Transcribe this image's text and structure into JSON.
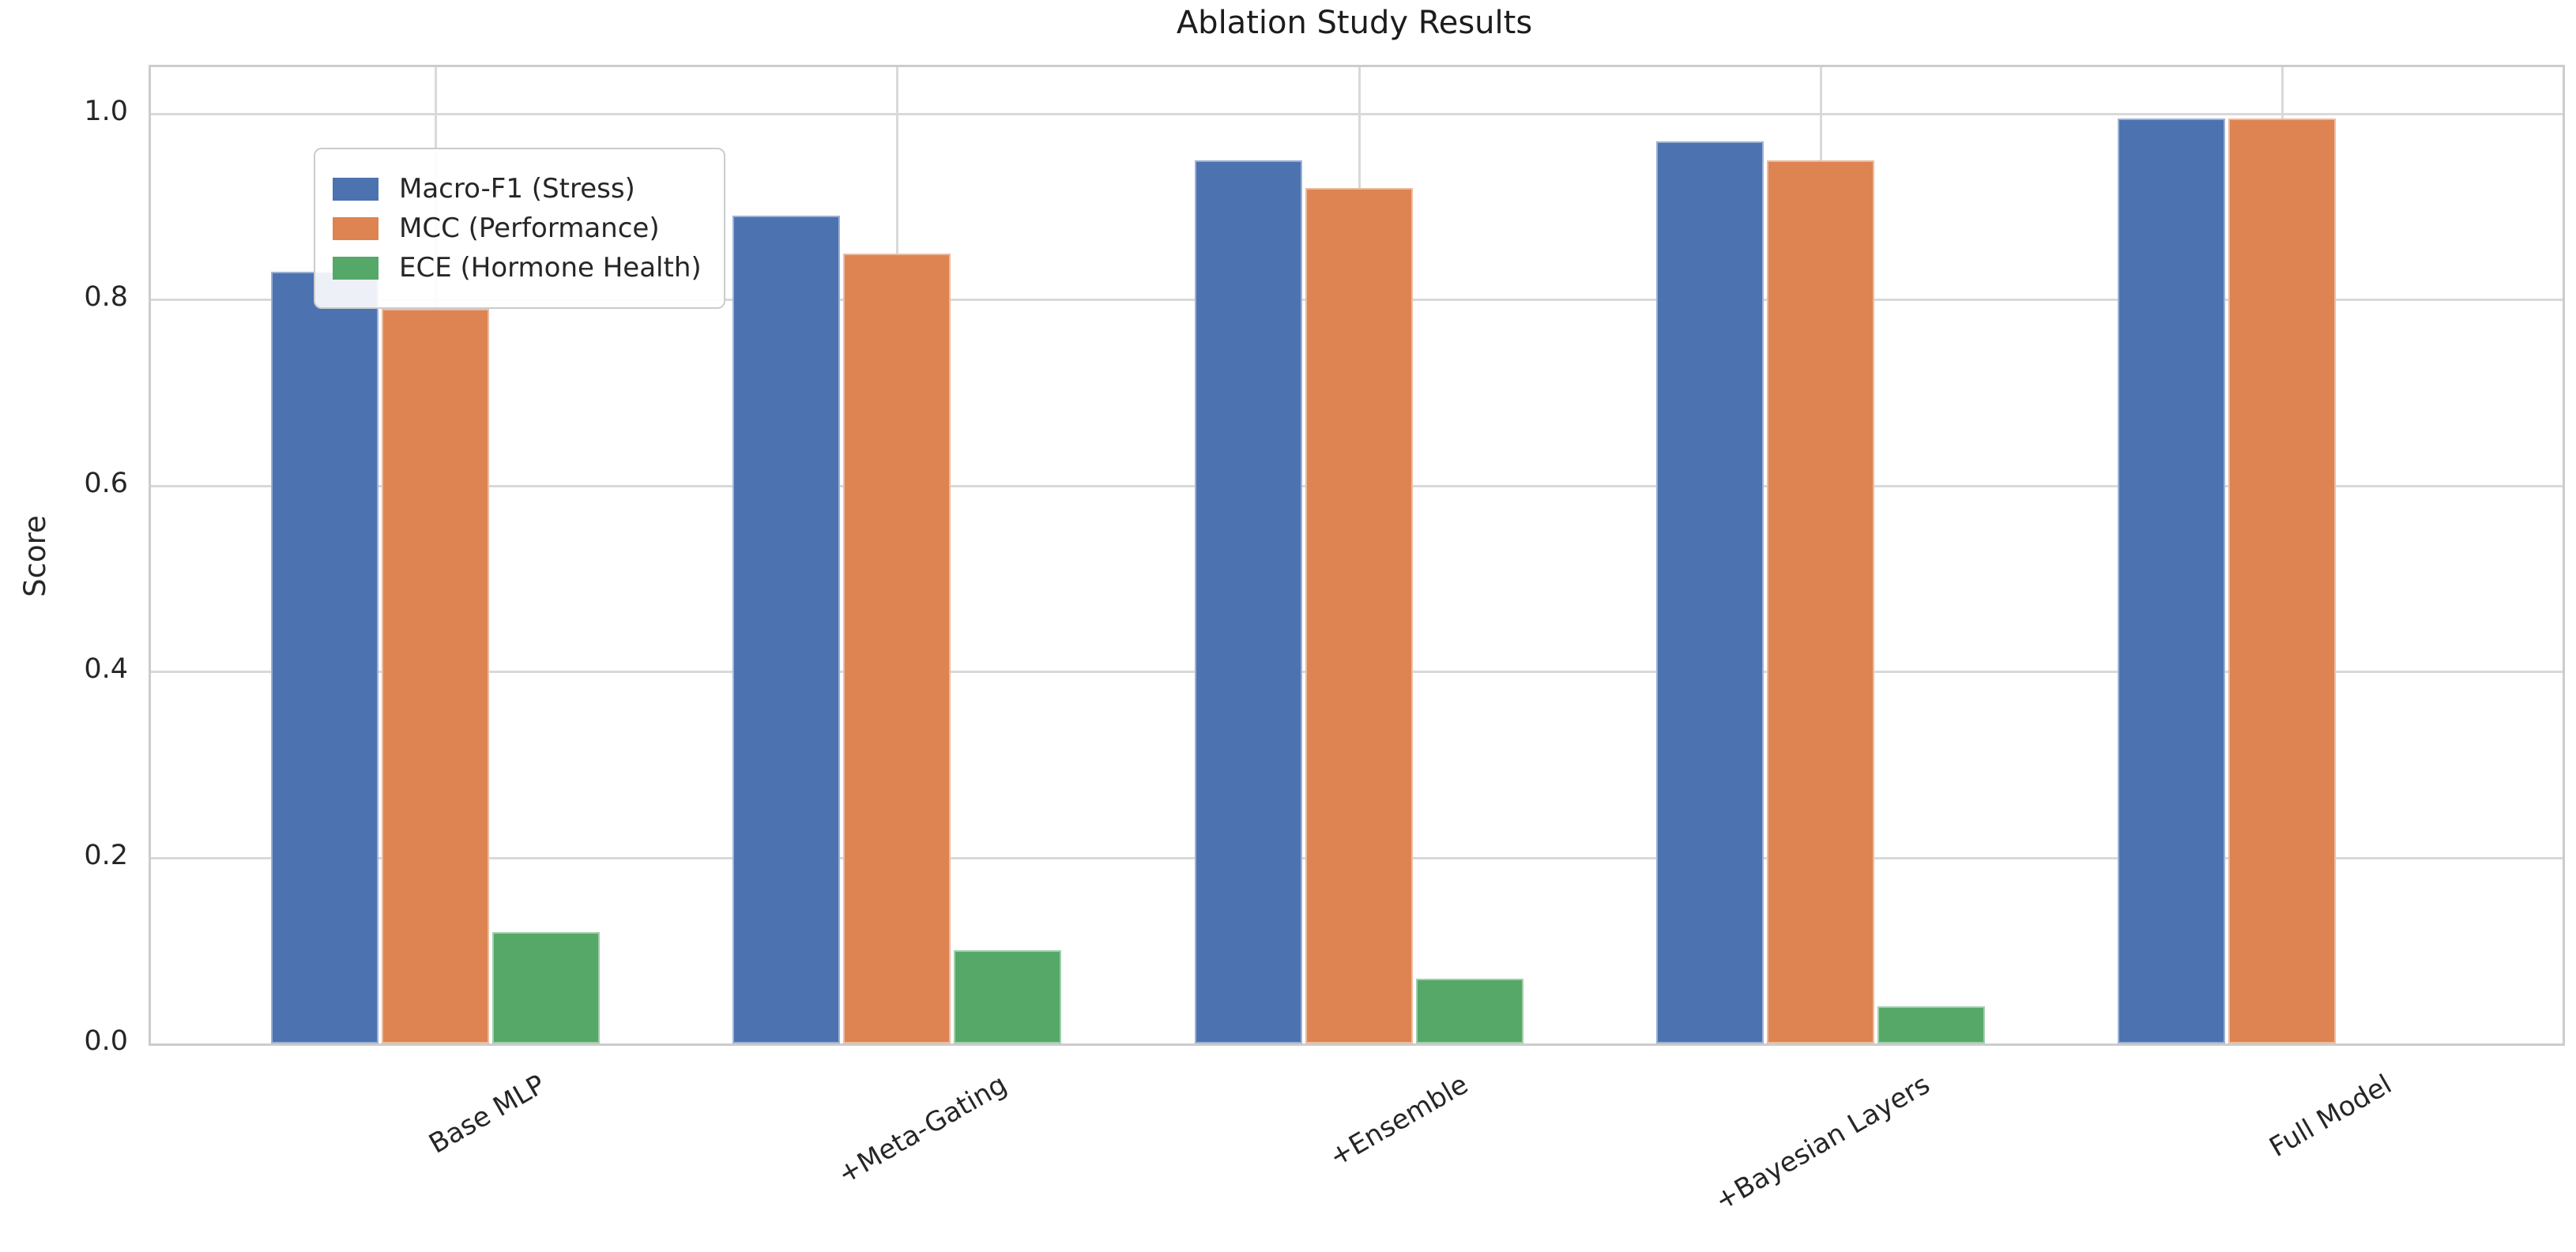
{
  "title": "Ablation Study Results",
  "ylabel": "Score",
  "chart_data": {
    "type": "bar",
    "title": "Ablation Study Results",
    "xlabel": "",
    "ylabel": "Score",
    "categories": [
      "Base MLP",
      "+Meta-Gating",
      "+Ensemble",
      "+Bayesian Layers",
      "Full Model"
    ],
    "series": [
      {
        "name": "Macro-F1 (Stress)",
        "color": "#4C72B0",
        "values": [
          0.83,
          0.89,
          0.95,
          0.97,
          0.995
        ]
      },
      {
        "name": "MCC (Performance)",
        "color": "#DD8452",
        "values": [
          0.79,
          0.85,
          0.92,
          0.95,
          0.995
        ]
      },
      {
        "name": "ECE (Hormone Health)",
        "color": "#55A868",
        "values": [
          0.12,
          0.1,
          0.07,
          0.04,
          0.0
        ]
      }
    ],
    "ylim": [
      0.0,
      1.05
    ],
    "yticks": [
      0.0,
      0.2,
      0.4,
      0.6,
      0.8,
      1.0
    ],
    "ytick_labels": [
      "0.0",
      "0.2",
      "0.4",
      "0.6",
      "0.8",
      "1.0"
    ],
    "grid": true,
    "grid_color": "#d9d9d9",
    "legend_position": "upper left",
    "x_tick_rotation": 30,
    "style": "whitegrid"
  }
}
